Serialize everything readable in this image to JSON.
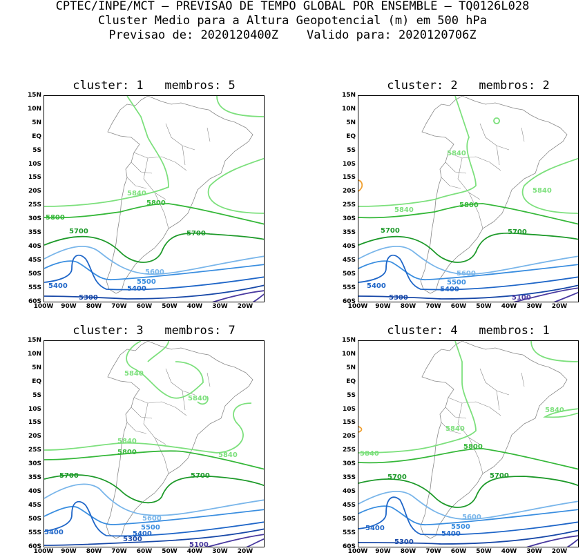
{
  "header": {
    "line1": "CPTEC/INPE/MCT – PREVISAO DE TEMPO GLOBAL POR ENSEMBLE – TQ0126L028",
    "line2": "Cluster Medio para a Altura Geopotencial (m) em 500 hPa",
    "line3": "Previsao de: 2020120400Z    Valido para: 2020120706Z"
  },
  "axes": {
    "lat_labels": [
      "15N",
      "10N",
      "5N",
      "EQ",
      "5S",
      "10S",
      "15S",
      "20S",
      "25S",
      "30S",
      "35S",
      "40S",
      "45S",
      "50S",
      "55S",
      "60S"
    ],
    "lon_labels": [
      "100W",
      "90W",
      "80W",
      "70W",
      "60W",
      "50W",
      "40W",
      "30W",
      "20W"
    ]
  },
  "colors": {
    "c5840": "#7de07d",
    "c5800": "#36b83a",
    "c5700": "#1e9a2a",
    "c5600": "#7ab6ea",
    "c5500": "#3a8ee0",
    "c5400": "#1f66c8",
    "c5300": "#1949a8",
    "c5100": "#4a3aa0",
    "outlier": "#f0a030",
    "coast": "#888888"
  },
  "panels": [
    {
      "title": "cluster: 1   membros: 5",
      "labels": {
        "l5840a": "5840",
        "l5800a": "5800",
        "l5800b": "5800",
        "l5700a": "5700",
        "l5700b": "5700",
        "l5600": "5600",
        "l5500": "5500",
        "l5400a": "5400",
        "l5400b": "5400",
        "l5300": "5300"
      }
    },
    {
      "title": "cluster: 2   membros: 2",
      "labels": {
        "l5840a": "5840",
        "l5840b": "5840",
        "l5840c": "5840",
        "l5800a": "5800",
        "l5700a": "5700",
        "l5700b": "5700",
        "l5600": "5600",
        "l5500": "5500",
        "l5400a": "5400",
        "l5400b": "5400",
        "l5300": "5300",
        "l5100": "5100"
      }
    },
    {
      "title": "cluster: 3   membros: 7",
      "labels": {
        "l5840a": "5840",
        "l5840b": "5840",
        "l5840c": "5840",
        "l5840d": "5840",
        "l5800a": "5800",
        "l5700a": "5700",
        "l5700b": "5700",
        "l5600": "5600",
        "l5500": "5500",
        "l5400a": "5400",
        "l5400b": "5400",
        "l5300": "5300",
        "l5100": "5100"
      }
    },
    {
      "title": "cluster: 4   membros: 1",
      "labels": {
        "l5840a": "5840",
        "l5840b": "5840",
        "l5840c": "5840",
        "l5800a": "5800",
        "l5700a": "5700",
        "l5700b": "5700",
        "l5600": "5600",
        "l5500": "5500",
        "l5400a": "5400",
        "l5400b": "5400",
        "l5300": "5300"
      }
    }
  ]
}
